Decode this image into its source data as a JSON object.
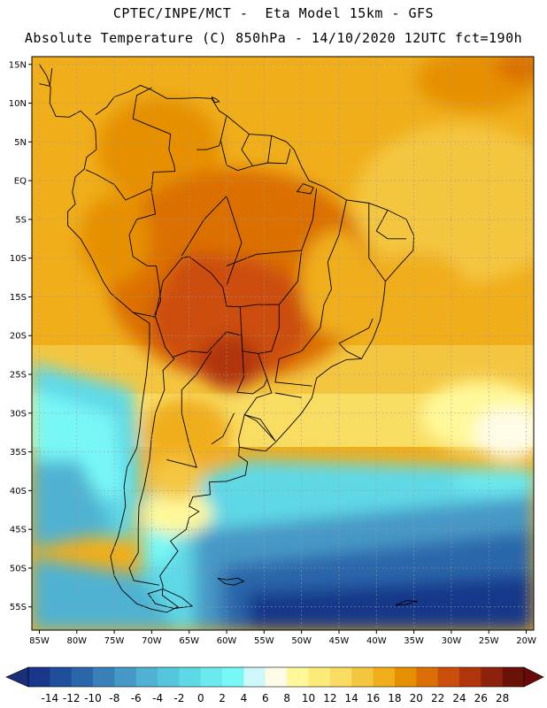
{
  "header": {
    "line1": "CPTEC/INPE/MCT -  Eta Model 15km - GFS",
    "line2": "Absolute Temperature (C) 850hPa - 14/10/2020 12UTC fct=190h"
  },
  "map": {
    "projection": "lat-lon",
    "lon_range": [
      -86,
      -19
    ],
    "lat_range": [
      -58,
      16
    ],
    "lat_ticks": [
      {
        "value": 15,
        "label": "15N"
      },
      {
        "value": 10,
        "label": "10N"
      },
      {
        "value": 5,
        "label": "5N"
      },
      {
        "value": 0,
        "label": "EQ"
      },
      {
        "value": -5,
        "label": "5S"
      },
      {
        "value": -10,
        "label": "10S"
      },
      {
        "value": -15,
        "label": "15S"
      },
      {
        "value": -20,
        "label": "20S"
      },
      {
        "value": -25,
        "label": "25S"
      },
      {
        "value": -30,
        "label": "30S"
      },
      {
        "value": -35,
        "label": "35S"
      },
      {
        "value": -40,
        "label": "40S"
      },
      {
        "value": -45,
        "label": "45S"
      },
      {
        "value": -50,
        "label": "50S"
      },
      {
        "value": -55,
        "label": "55S"
      }
    ],
    "lon_ticks": [
      {
        "value": -85,
        "label": "85W"
      },
      {
        "value": -80,
        "label": "80W"
      },
      {
        "value": -75,
        "label": "75W"
      },
      {
        "value": -70,
        "label": "70W"
      },
      {
        "value": -65,
        "label": "65W"
      },
      {
        "value": -60,
        "label": "60W"
      },
      {
        "value": -55,
        "label": "55W"
      },
      {
        "value": -50,
        "label": "50W"
      },
      {
        "value": -45,
        "label": "45W"
      },
      {
        "value": -40,
        "label": "40W"
      },
      {
        "value": -35,
        "label": "35W"
      },
      {
        "value": -30,
        "label": "30W"
      },
      {
        "value": -25,
        "label": "25W"
      },
      {
        "value": -20,
        "label": "20W"
      }
    ]
  },
  "colorbar": {
    "labels": [
      "-14",
      "-12",
      "-10",
      "-8",
      "-6",
      "-4",
      "-2",
      "0",
      "2",
      "4",
      "6",
      "8",
      "10",
      "12",
      "14",
      "16",
      "18",
      "20",
      "22",
      "24",
      "26",
      "28"
    ],
    "colors": [
      "#19378a",
      "#1e4f9b",
      "#2a66aa",
      "#3a80b8",
      "#4698c6",
      "#4fb2d2",
      "#56c6dd",
      "#5fd8e6",
      "#6be9ef",
      "#78f7f7",
      "#cdf7f9",
      "#fffbe6",
      "#fff89a",
      "#fdeb79",
      "#f9dc62",
      "#f4c640",
      "#f0ae1a",
      "#e69000",
      "#db6f06",
      "#cc4e0c",
      "#b1350a",
      "#8c220c",
      "#6a1208"
    ],
    "under_color": "#1a2f7a",
    "over_color": "#6a0a0a"
  }
}
